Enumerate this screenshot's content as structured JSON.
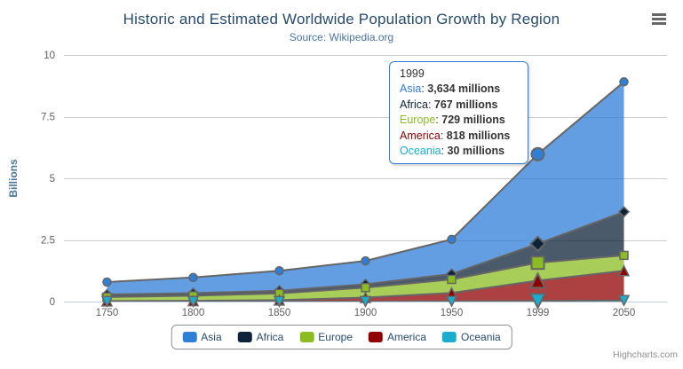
{
  "chart_data": {
    "type": "area",
    "stacking": "normal",
    "title": "Historic and Estimated Worldwide Population Growth by Region",
    "subtitle": "Source: Wikipedia.org",
    "ylabel": "Billions",
    "xlabel": "",
    "unit": "millions",
    "categories": [
      "1750",
      "1800",
      "1850",
      "1900",
      "1950",
      "1999",
      "2050"
    ],
    "yticks": [
      "0",
      "2.5",
      "5",
      "7.5",
      "10"
    ],
    "ylim": [
      0,
      10
    ],
    "grid": true,
    "legend_position": "bottom-center",
    "line_color": "#666666",
    "fill_opacity": 0.75,
    "series": [
      {
        "name": "Asia",
        "color": "#2f7ed8",
        "marker": "circle",
        "values": [
          502,
          635,
          809,
          947,
          1402,
          3634,
          5268
        ]
      },
      {
        "name": "Africa",
        "color": "#0d233a",
        "marker": "diamond",
        "values": [
          106,
          107,
          111,
          133,
          221,
          767,
          1766
        ]
      },
      {
        "name": "Europe",
        "color": "#8bbc21",
        "marker": "square",
        "values": [
          163,
          203,
          276,
          408,
          547,
          729,
          628
        ]
      },
      {
        "name": "America",
        "color": "#910000",
        "marker": "triangle",
        "values": [
          18,
          31,
          54,
          156,
          339,
          818,
          1201
        ]
      },
      {
        "name": "Oceania",
        "color": "#1aadce",
        "marker": "triangle-down",
        "values": [
          2,
          2,
          2,
          6,
          13,
          30,
          46
        ]
      }
    ],
    "hover": {
      "category_index": 5,
      "category": "1999"
    }
  },
  "tooltip": {
    "header": "1999",
    "border_color": "#2f7ed8",
    "rows": [
      {
        "series": "Asia",
        "value_label": "3,634 millions"
      },
      {
        "series": "Africa",
        "value_label": "767 millions"
      },
      {
        "series": "Europe",
        "value_label": "729 millions"
      },
      {
        "series": "America",
        "value_label": "818 millions"
      },
      {
        "series": "Oceania",
        "value_label": "30 millions"
      }
    ]
  },
  "credits": {
    "label": "Highcharts.com"
  },
  "icons": {
    "context_menu": "hamburger-menu-icon"
  },
  "colors": {
    "title": "#274b6d",
    "subtitle": "#4d759e",
    "axis_label": "#606060",
    "grid": "#cccccc",
    "axis_line": "#c0d0e0",
    "legend_border": "#909090",
    "credits": "#909090"
  }
}
